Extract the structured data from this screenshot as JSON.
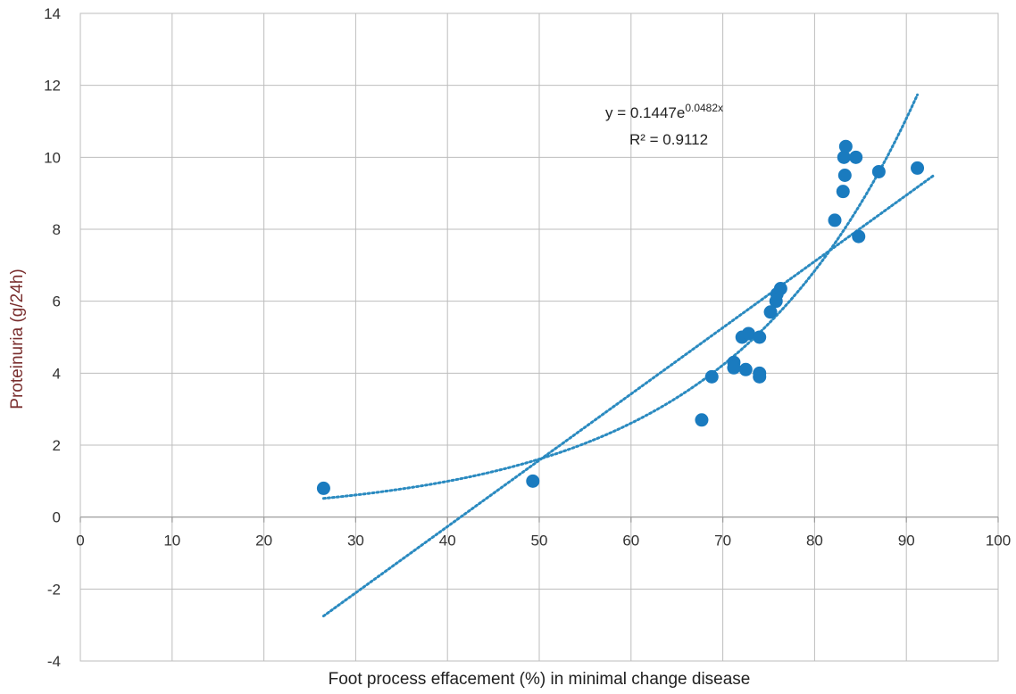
{
  "chart_data": {
    "type": "scatter",
    "title": "",
    "xlabel": "Foot process effacement (%) in minimal change disease",
    "ylabel": "Proteinuria (g/24h)",
    "xlim": [
      0,
      100
    ],
    "ylim": [
      -4,
      14
    ],
    "x_ticks": [
      "0",
      "10",
      "20",
      "30",
      "40",
      "50",
      "60",
      "70",
      "80",
      "90",
      "100"
    ],
    "y_ticks": [
      "-4",
      "-2",
      "0",
      "2",
      "4",
      "6",
      "8",
      "10",
      "12",
      "14"
    ],
    "grid": true,
    "marker_color": "#1a7bbf",
    "trendline_color": "#2a8ac0",
    "points": [
      {
        "x": 26.5,
        "y": 0.8
      },
      {
        "x": 49.3,
        "y": 1.0
      },
      {
        "x": 67.7,
        "y": 2.7
      },
      {
        "x": 68.8,
        "y": 3.9
      },
      {
        "x": 71.2,
        "y": 4.3
      },
      {
        "x": 71.2,
        "y": 4.15
      },
      {
        "x": 72.1,
        "y": 5.0
      },
      {
        "x": 72.5,
        "y": 4.1
      },
      {
        "x": 72.8,
        "y": 5.1
      },
      {
        "x": 74.0,
        "y": 4.0
      },
      {
        "x": 74.0,
        "y": 3.9
      },
      {
        "x": 74.0,
        "y": 5.0
      },
      {
        "x": 75.2,
        "y": 5.7
      },
      {
        "x": 75.8,
        "y": 6.0
      },
      {
        "x": 75.9,
        "y": 6.2
      },
      {
        "x": 76.3,
        "y": 6.35
      },
      {
        "x": 82.2,
        "y": 8.25
      },
      {
        "x": 83.1,
        "y": 9.05
      },
      {
        "x": 83.2,
        "y": 10.0
      },
      {
        "x": 83.3,
        "y": 9.5
      },
      {
        "x": 83.4,
        "y": 10.3
      },
      {
        "x": 84.5,
        "y": 10.0
      },
      {
        "x": 84.8,
        "y": 7.8
      },
      {
        "x": 87.0,
        "y": 9.6
      },
      {
        "x": 91.2,
        "y": 9.7
      }
    ],
    "trendlines": [
      {
        "kind": "linear",
        "x_range": [
          26.5,
          93
        ],
        "y_range": [
          -2.75,
          9.5
        ]
      },
      {
        "kind": "exponential",
        "a": 0.1447,
        "b": 0.0482,
        "x_range": [
          26.5,
          91.2
        ]
      }
    ],
    "annotations": {
      "equation_prefix": "y = 0.1447e",
      "equation_exponent": "0.0482x",
      "r_squared": "R² = 0.9112"
    }
  }
}
